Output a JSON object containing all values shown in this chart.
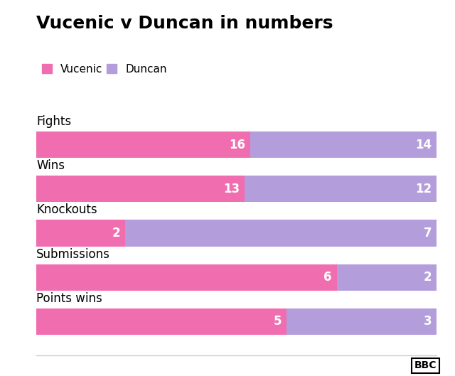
{
  "title": "Vucenic v Duncan in numbers",
  "categories": [
    "Fights",
    "Wins",
    "Knockouts",
    "Submissions",
    "Points wins"
  ],
  "vucenic_values": [
    16,
    13,
    2,
    6,
    5
  ],
  "duncan_values": [
    14,
    12,
    7,
    2,
    3
  ],
  "vucenic_color": "#f06eb0",
  "duncan_color": "#b39ddb",
  "bg_color": "#ffffff",
  "text_color": "#ffffff",
  "label_color": "#000000",
  "title_fontsize": 18,
  "cat_fontsize": 12,
  "bar_label_fontsize": 12,
  "legend_label1": "Vucenic",
  "legend_label2": "Duncan",
  "bar_height": 0.6,
  "legend_fontsize": 11
}
